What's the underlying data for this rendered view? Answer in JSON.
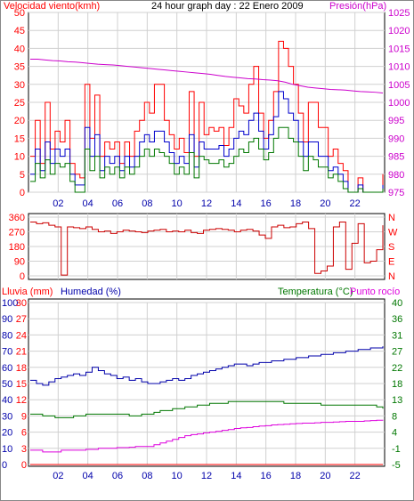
{
  "colors": {
    "wind": "#ff0000",
    "gust": "#ff0000",
    "avg": "#0000cc",
    "min": "#007700",
    "pressure": "#cc00cc",
    "direction": "#cc0000",
    "humidity": "#0000aa",
    "temperature": "#007700",
    "dewpoint": "#dd00dd",
    "rain": "#ff0000",
    "axis_left_top": "#ff0000",
    "axis_right_top": "#cc00cc",
    "axis_dir": "#ff0000",
    "axis_rain": "#ff0000",
    "axis_hum": "#0000aa",
    "axis_temp": "#007700",
    "grid": "#d0d0d0"
  },
  "chart_data": [
    {
      "type": "line",
      "title": "24 hour graph day : 22 Enero 2009",
      "ylabel": "Velocidad viento(kmh)",
      "y2label": "Presión(hPa)",
      "x_ticks": [
        "02",
        "04",
        "06",
        "08",
        "10",
        "12",
        "14",
        "16",
        "18",
        "20",
        "22"
      ],
      "ylim": [
        0,
        50
      ],
      "y_ticks": [
        "0",
        "5",
        "10",
        "15",
        "20",
        "25",
        "30",
        "35",
        "40",
        "45",
        "50"
      ],
      "y2lim": [
        975,
        1025
      ],
      "y2_ticks": [
        "975",
        "980",
        "985",
        "990",
        "995",
        "1000",
        "1005",
        "1010",
        "1015",
        "1020",
        "1025"
      ],
      "grid": true,
      "series": [
        {
          "name": "gust",
          "values": [
            10,
            20,
            8,
            25,
            12,
            17,
            14,
            20,
            8,
            5,
            4,
            30,
            15,
            27,
            10,
            14,
            12,
            14,
            8,
            14,
            10,
            17,
            20,
            25,
            22,
            30,
            30,
            20,
            16,
            12,
            15,
            11,
            28,
            10,
            25,
            16,
            18,
            17,
            18,
            13,
            18,
            26,
            24,
            22,
            30,
            35,
            22,
            15,
            20,
            28,
            42,
            40,
            35,
            30,
            22,
            14,
            25,
            25,
            18,
            18,
            10,
            12,
            8,
            6,
            0,
            0,
            4,
            0,
            0,
            0,
            0,
            5
          ]
        },
        {
          "name": "avg",
          "values": [
            5,
            12,
            6,
            14,
            8,
            12,
            10,
            12,
            5,
            2,
            2,
            18,
            10,
            16,
            6,
            10,
            8,
            10,
            6,
            10,
            7,
            10,
            14,
            16,
            14,
            17,
            17,
            14,
            11,
            8,
            10,
            8,
            16,
            7,
            14,
            12,
            12,
            12,
            13,
            10,
            12,
            15,
            17,
            16,
            20,
            22,
            17,
            12,
            16,
            21,
            28,
            26,
            22,
            20,
            14,
            10,
            14,
            14,
            10,
            10,
            6,
            7,
            5,
            3,
            0,
            0,
            2,
            0,
            0,
            0,
            0,
            2
          ]
        },
        {
          "name": "min",
          "values": [
            3,
            8,
            4,
            9,
            5,
            8,
            7,
            8,
            3,
            0,
            0,
            12,
            6,
            10,
            4,
            7,
            5,
            7,
            4,
            7,
            5,
            7,
            10,
            12,
            10,
            12,
            11,
            10,
            8,
            5,
            7,
            5,
            11,
            4,
            10,
            9,
            8,
            8,
            9,
            7,
            8,
            10,
            12,
            11,
            14,
            15,
            12,
            9,
            11,
            15,
            18,
            18,
            15,
            14,
            10,
            6,
            10,
            9,
            7,
            7,
            4,
            5,
            3,
            1,
            0,
            0,
            1,
            0,
            0,
            0,
            0,
            1
          ]
        },
        {
          "name": "pressure",
          "values": [
            1012,
            1012,
            1011.8,
            1011.6,
            1011.5,
            1011.3,
            1011.2,
            1011,
            1010.8,
            1010.6,
            1010.5,
            1010.4,
            1010.2,
            1010,
            1009.8,
            1009.6,
            1009.4,
            1009.2,
            1009,
            1008.8,
            1008.6,
            1008.4,
            1008.2,
            1008,
            1007.8,
            1007.5,
            1007.2,
            1007,
            1006.8,
            1006.6,
            1006.5,
            1006.3,
            1006.2,
            1006,
            1005.6,
            1005,
            1004.6,
            1004.2,
            1004,
            1003.8,
            1003.6,
            1003.5,
            1003.4,
            1003.2,
            1003,
            1002.9,
            1002.8,
            1002.6
          ]
        }
      ]
    },
    {
      "type": "line",
      "ylim": [
        0,
        360
      ],
      "y_ticks": [
        "0",
        "90",
        "180",
        "270",
        "360"
      ],
      "y2_ticks": [
        "N",
        "W",
        "S",
        "E",
        "N"
      ],
      "x_ticks": [
        "02",
        "04",
        "06",
        "08",
        "10",
        "12",
        "14",
        "16",
        "18",
        "20",
        "22"
      ],
      "grid": true,
      "series": [
        {
          "name": "direction",
          "values": [
            330,
            320,
            325,
            310,
            300,
            5,
            300,
            295,
            290,
            300,
            285,
            270,
            275,
            260,
            270,
            280,
            275,
            270,
            265,
            275,
            280,
            285,
            270,
            275,
            270,
            280,
            265,
            260,
            280,
            285,
            290,
            285,
            280,
            270,
            280,
            285,
            275,
            250,
            230,
            300,
            310,
            295,
            300,
            320,
            330,
            290,
            15,
            30,
            60,
            300,
            330,
            40,
            200,
            320,
            80,
            90,
            160,
            310
          ]
        }
      ]
    },
    {
      "type": "line",
      "ylabel": "Lluvia (mm)",
      "ylabel2": "Humedad (%)",
      "y2label": "Temperatura (°C)",
      "y2label2": "Punto rocío",
      "x_ticks": [
        "02",
        "04",
        "06",
        "08",
        "10",
        "12",
        "14",
        "16",
        "18",
        "20",
        "22"
      ],
      "ylim": [
        0,
        30
      ],
      "y_ticks_rain": [
        "0",
        "3",
        "6",
        "9",
        "12",
        "15",
        "18",
        "21",
        "24",
        "27",
        "30"
      ],
      "y_ticks_hum": [
        "0",
        "10",
        "20",
        "30",
        "40",
        "50",
        "60",
        "70",
        "80",
        "90",
        "100"
      ],
      "y2lim": [
        -5,
        40
      ],
      "y2_ticks": [
        "-5",
        "-1",
        "4",
        "8",
        "13",
        "18",
        "22",
        "27",
        "31",
        "36",
        "40"
      ],
      "grid": true,
      "series": [
        {
          "name": "Humedad (%)",
          "values": [
            52,
            50,
            49,
            51,
            53,
            54,
            55,
            56,
            55,
            57,
            60,
            58,
            56,
            55,
            53,
            54,
            52,
            53,
            51,
            50,
            50,
            51,
            52,
            53,
            52,
            53,
            55,
            56,
            57,
            58,
            59,
            60,
            61,
            62,
            62,
            61,
            62,
            63,
            63,
            64,
            64,
            65,
            65,
            66,
            66,
            67,
            67,
            68,
            68,
            69,
            69,
            70,
            70,
            71,
            71,
            72,
            72,
            73
          ]
        },
        {
          "name": "Temperatura (°C)",
          "values": [
            9,
            9,
            8.5,
            8.5,
            8,
            8,
            8,
            8.5,
            8.5,
            9,
            9,
            9,
            9,
            9,
            9,
            9,
            8.5,
            8.5,
            9,
            9,
            9.5,
            10,
            10,
            10.5,
            10.5,
            11,
            11,
            11.5,
            11.5,
            12,
            12,
            12,
            12.5,
            12.5,
            12.5,
            12.5,
            12.5,
            12.5,
            12.5,
            12.5,
            12.5,
            12,
            12,
            12,
            12,
            12,
            12,
            11.5,
            11.5,
            11.5,
            11.5,
            11.5,
            11.5,
            11.5,
            11.5,
            11.5,
            11,
            10.5
          ]
        },
        {
          "name": "Punto rocío",
          "values": [
            -1,
            -1,
            -1.5,
            -1.5,
            -1.5,
            -1,
            -1,
            -1,
            -1,
            -0.8,
            -0.8,
            -0.5,
            -0.5,
            -0.5,
            -0.3,
            -0.3,
            -0.2,
            0,
            0,
            0,
            0.5,
            1,
            1.5,
            2,
            2.5,
            3,
            3.3,
            3.5,
            3.8,
            4,
            4.2,
            4.5,
            4.7,
            5,
            5.2,
            5.3,
            5.5,
            5.7,
            5.8,
            6,
            6.1,
            6.2,
            6.3,
            6.4,
            6.5,
            6.5,
            6.6,
            6.7,
            6.7,
            6.8,
            6.9,
            7,
            7,
            7,
            7.1,
            7.2,
            7.3,
            7.2
          ]
        },
        {
          "name": "Lluvia (mm)",
          "values": [
            0,
            0,
            0,
            0,
            0,
            0,
            0,
            0,
            0,
            0,
            0,
            0,
            0,
            0,
            0,
            0,
            0,
            0,
            0,
            0,
            0,
            0,
            0,
            0,
            0,
            0,
            0,
            0,
            0,
            0,
            0,
            0,
            0,
            0,
            0,
            0,
            0,
            0,
            0,
            0,
            0,
            0,
            0,
            0,
            0,
            0,
            0,
            0,
            0,
            0,
            0,
            0,
            0,
            0,
            0,
            0,
            0,
            0
          ]
        }
      ]
    }
  ]
}
